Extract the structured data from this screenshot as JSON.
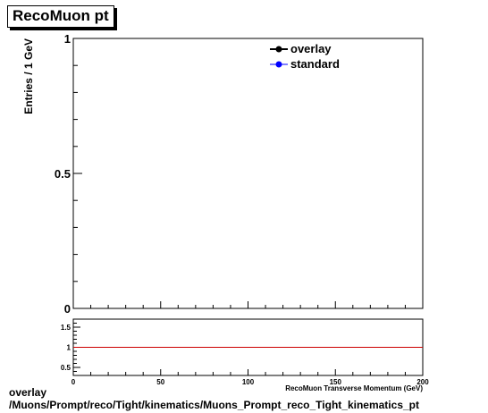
{
  "chart_data": [
    {
      "type": "line",
      "title": "RecoMuon pt",
      "xlabel": "",
      "ylabel": "Entries / 1 GeV",
      "xlim": [
        0,
        200
      ],
      "ylim": [
        0,
        1
      ],
      "y_tick_labels": [
        "0",
        "0.5",
        "1"
      ],
      "grid": false,
      "legend_position": "top-right",
      "series": [
        {
          "name": "overlay",
          "color": "#000000",
          "x": [],
          "y": []
        },
        {
          "name": "standard",
          "color": "#0000ff",
          "x": [],
          "y": []
        }
      ]
    },
    {
      "type": "line",
      "title": "",
      "xlabel": "RecoMuon Transverse Momentum (GeV)",
      "ylabel": "",
      "xlim": [
        0,
        200
      ],
      "ylim": [
        0.3,
        1.7
      ],
      "x_tick_labels": [
        "0",
        "50",
        "100",
        "150",
        "200"
      ],
      "y_tick_labels": [
        "0.5",
        "1",
        "1.5"
      ],
      "grid": false,
      "series": [
        {
          "name": "",
          "color": "#cc0000",
          "x": [
            0,
            200
          ],
          "y": [
            1,
            1
          ]
        }
      ]
    }
  ],
  "footer": {
    "line1": "overlay",
    "line2": "/Muons/Prompt/reco/Tight/kinematics/Muons_Prompt_reco_Tight_kinematics_pt"
  }
}
